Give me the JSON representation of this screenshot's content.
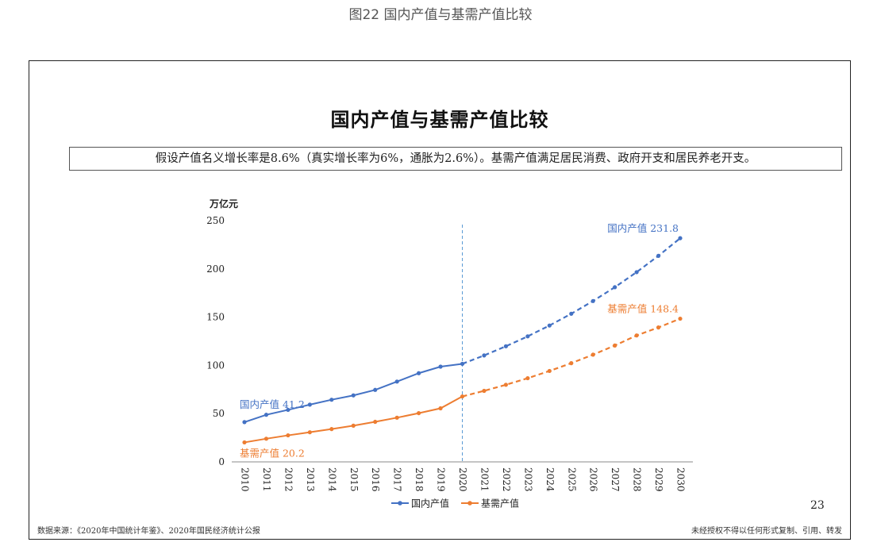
{
  "caption": "图22 国内产值与基需产值比较",
  "slide": {
    "title": "国内产值与基需产值比较",
    "assumption": "假设产值名义增长率是8.6%（真实增长率为6%，通胀为2.6%）。基需产值满足居民消费、政府开支和居民养老开支。",
    "page_number": "23",
    "source": "数据来源：《2020年中国统计年鉴》、2020年国民经济统计公报",
    "notice": "未经授权不得以任何形式复制、引用、转发"
  },
  "chart_data": {
    "type": "line",
    "ylabel": "万亿元",
    "xlabel": "",
    "ylim": [
      0,
      250
    ],
    "yticks": [
      0,
      50,
      100,
      150,
      200,
      250
    ],
    "grid": false,
    "legend_position": "bottom",
    "x": [
      "2010",
      "2011",
      "2012",
      "2013",
      "2014",
      "2015",
      "2016",
      "2017",
      "2018",
      "2019",
      "2020",
      "2021",
      "2022",
      "2023",
      "2024",
      "2025",
      "2026",
      "2027",
      "2028",
      "2029",
      "2030"
    ],
    "forecast_start": "2020",
    "series": [
      {
        "name": "国内产值",
        "color": "#4472C4",
        "values": [
          41.2,
          48.8,
          53.9,
          59.3,
          64.4,
          68.9,
          74.6,
          83.2,
          91.9,
          98.7,
          101.6,
          110.3,
          119.8,
          130.1,
          141.3,
          153.5,
          166.7,
          181.0,
          196.6,
          213.5,
          231.8
        ],
        "start_label": "国内产值 41.2",
        "end_label": "国内产值 231.8"
      },
      {
        "name": "基需产值",
        "color": "#ED7D31",
        "values": [
          20.2,
          24.0,
          27.5,
          30.7,
          34.0,
          37.5,
          41.5,
          45.8,
          50.5,
          55.5,
          67.8,
          73.6,
          79.9,
          86.7,
          94.2,
          102.3,
          111.1,
          120.6,
          131.0,
          139.3,
          148.4
        ],
        "start_label": "基需产值 20.2",
        "end_label": "基需产值 148.4"
      }
    ]
  }
}
